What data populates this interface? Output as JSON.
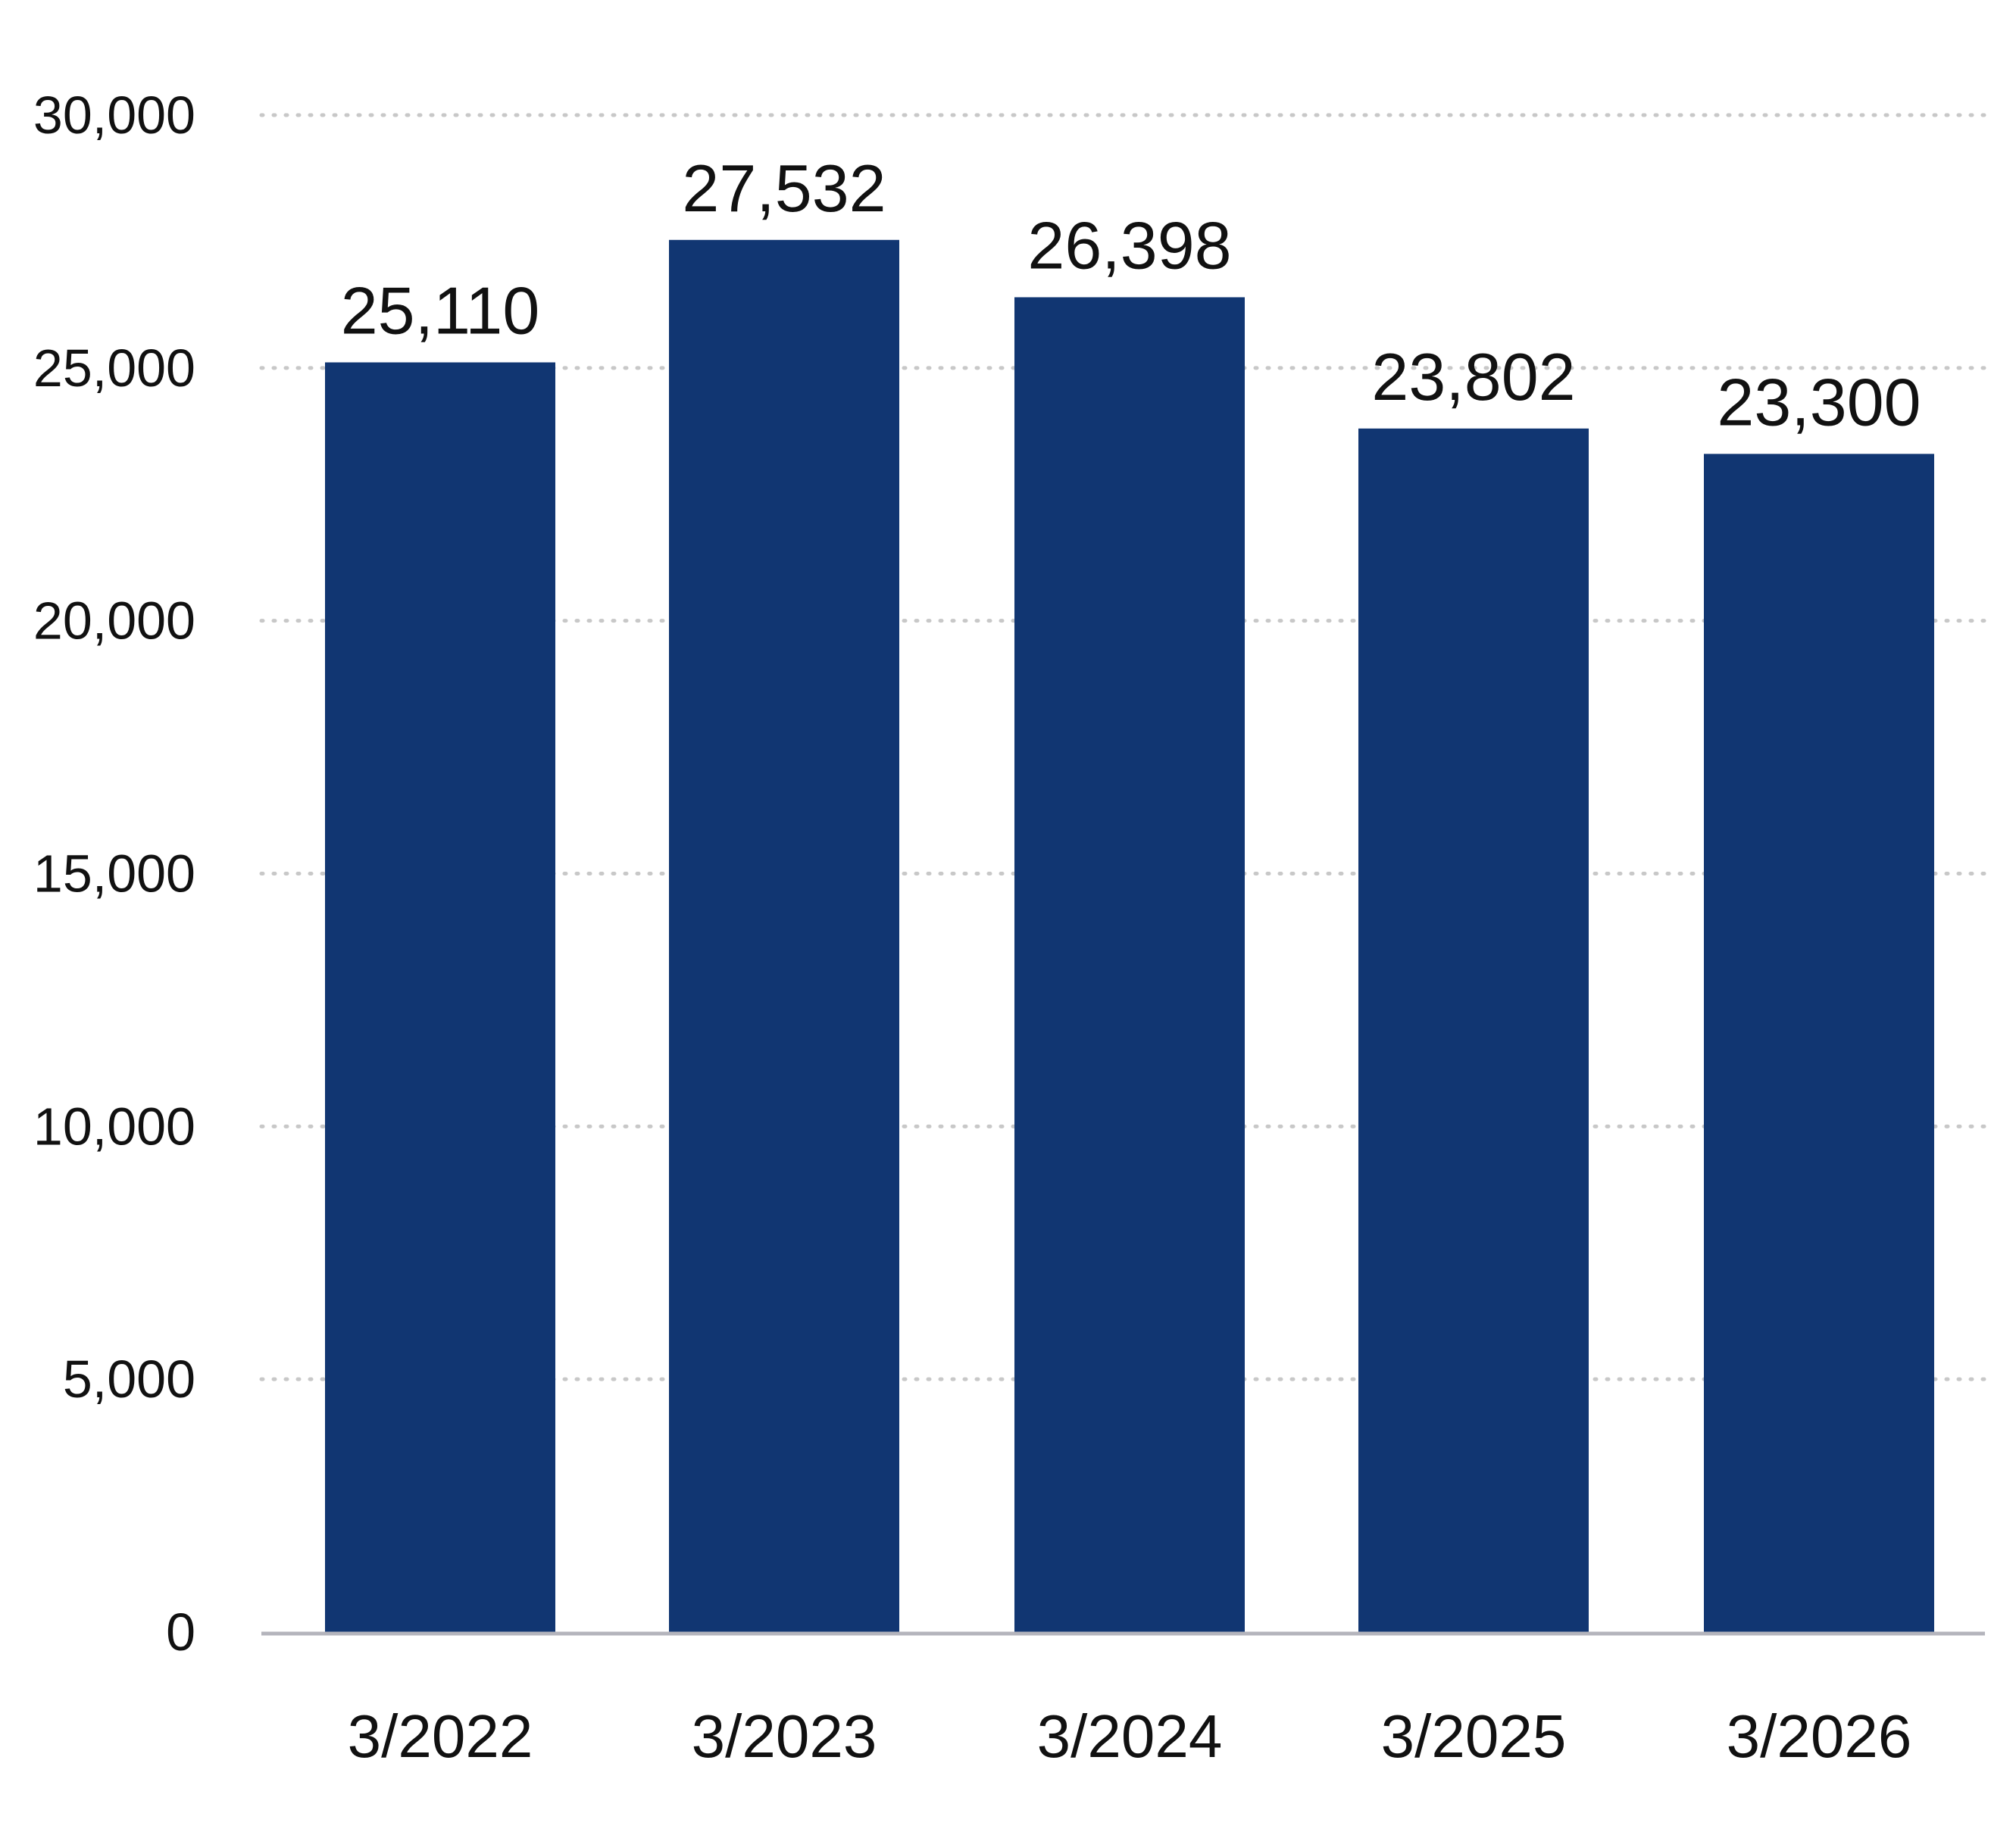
{
  "chart_data": {
    "type": "bar",
    "categories": [
      "3/2022",
      "3/2023",
      "3/2024",
      "3/2025",
      "3/2026"
    ],
    "values": [
      25110,
      27532,
      26398,
      23802,
      23300
    ],
    "value_labels": [
      "25,110",
      "27,532",
      "26,398",
      "23,802",
      "23,300"
    ],
    "y_ticks": [
      0,
      5000,
      10000,
      15000,
      20000,
      25000,
      30000
    ],
    "y_tick_labels": [
      "0",
      "5,000",
      "10,000",
      "15,000",
      "20,000",
      "25,000",
      "30,000"
    ],
    "ylim": [
      0,
      30000
    ],
    "title": "",
    "xlabel": "",
    "ylabel": "",
    "grid": "horizontal-dotted",
    "legend": "none",
    "colors": {
      "bar": "#113672",
      "grid": "#c8c8c8",
      "axis": "#b4b4bc",
      "text": "#111111"
    }
  }
}
